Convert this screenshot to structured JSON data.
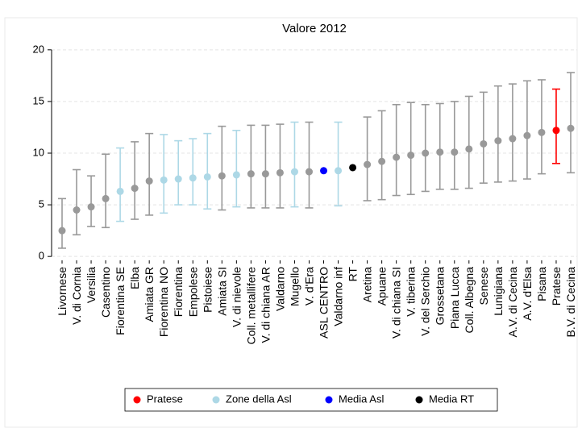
{
  "chart_data": {
    "type": "errorbar-dot",
    "title": "Valore 2012",
    "categories": [
      "Livornese",
      "V. di Cornia",
      "Versilia",
      "Casentino",
      "Fiorentina SE",
      "Elba",
      "Amiata GR",
      "Fiorentina NO",
      "Fiorentina",
      "Empolese",
      "Pistoiese",
      "Amiata SI",
      "V. di nievole",
      "Coll. metallifere",
      "V. di chiana AR",
      "Valdarno",
      "Mugello",
      "V. d'Era",
      "ASL CENTRO",
      "Valdarno inf",
      "RT",
      "Aretina",
      "Apuane",
      "V. di chiana SI",
      "V. tiberina",
      "V. del Serchio",
      "Grossetana",
      "Piana Lucca",
      "Coll. Albegna",
      "Senese",
      "Lunigiana",
      "A.V. di Cecina",
      "A.V. d'Elsa",
      "Pisana",
      "Pratese",
      "B.V. di Cecina"
    ],
    "values": [
      2.5,
      4.5,
      4.8,
      5.6,
      6.3,
      6.6,
      7.3,
      7.4,
      7.5,
      7.6,
      7.7,
      7.8,
      7.9,
      8.0,
      8.0,
      8.1,
      8.2,
      8.2,
      8.3,
      8.3,
      8.6,
      8.9,
      9.2,
      9.6,
      9.8,
      10.0,
      10.1,
      10.1,
      10.4,
      10.9,
      11.2,
      11.4,
      11.7,
      12.0,
      12.2,
      12.4
    ],
    "lower": [
      0.8,
      2.1,
      2.9,
      2.8,
      3.4,
      3.6,
      4.0,
      4.2,
      5.0,
      5.0,
      4.6,
      4.5,
      4.8,
      4.7,
      4.7,
      4.7,
      4.8,
      4.7,
      null,
      4.9,
      null,
      5.4,
      5.5,
      5.9,
      6.0,
      6.3,
      6.5,
      6.5,
      6.6,
      7.1,
      7.2,
      7.3,
      7.5,
      8.0,
      9.0,
      8.1
    ],
    "upper": [
      5.6,
      8.4,
      7.8,
      9.9,
      10.5,
      11.1,
      11.9,
      11.8,
      11.2,
      11.4,
      11.9,
      12.6,
      12.2,
      12.7,
      12.7,
      12.8,
      13.0,
      13.0,
      null,
      13.0,
      null,
      13.5,
      14.1,
      14.7,
      14.9,
      14.7,
      14.8,
      15.0,
      15.5,
      15.9,
      16.5,
      16.7,
      17.0,
      17.1,
      16.2,
      17.8
    ],
    "point_colors": [
      "#999999",
      "#999999",
      "#999999",
      "#999999",
      "#add8e6",
      "#999999",
      "#999999",
      "#add8e6",
      "#add8e6",
      "#add8e6",
      "#add8e6",
      "#999999",
      "#add8e6",
      "#999999",
      "#999999",
      "#999999",
      "#add8e6",
      "#999999",
      "#0000ff",
      "#add8e6",
      "#000000",
      "#999999",
      "#999999",
      "#999999",
      "#999999",
      "#999999",
      "#999999",
      "#999999",
      "#999999",
      "#999999",
      "#999999",
      "#999999",
      "#999999",
      "#999999",
      "#ff0000",
      "#999999"
    ],
    "legend": [
      {
        "name": "Pratese",
        "color": "#ff0000"
      },
      {
        "name": "Zone della Asl",
        "color": "#add8e6"
      },
      {
        "name": "Media Asl",
        "color": "#0000ff"
      },
      {
        "name": "Media RT",
        "color": "#000000"
      }
    ],
    "ylim": [
      -1,
      21
    ],
    "yticks": [
      0,
      5,
      10,
      15,
      20
    ],
    "grid": true
  }
}
